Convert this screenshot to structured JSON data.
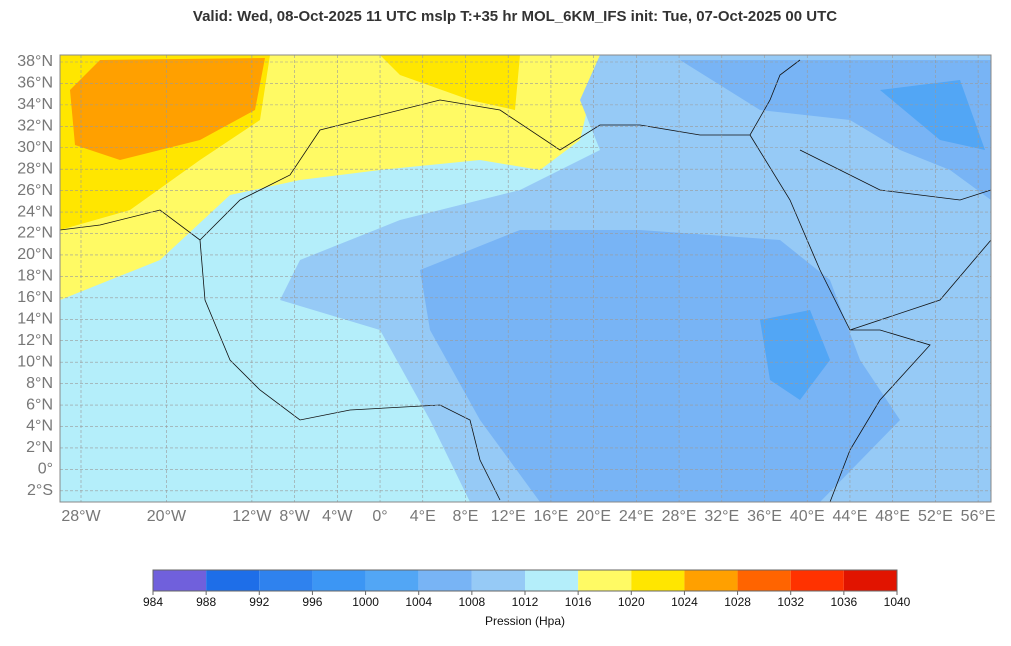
{
  "title": "Valid: Wed, 08-Oct-2025   11 UTC   mslp   T:+35 hr   MOL_6KM_IFS       init: Tue, 07-Oct-2025   00 UTC",
  "map": {
    "lat_ticks": [
      {
        "value": 38,
        "label": "38°N"
      },
      {
        "value": 36,
        "label": "36°N"
      },
      {
        "value": 34,
        "label": "34°N"
      },
      {
        "value": 32,
        "label": "32°N"
      },
      {
        "value": 30,
        "label": "30°N"
      },
      {
        "value": 28,
        "label": "28°N"
      },
      {
        "value": 26,
        "label": "26°N"
      },
      {
        "value": 24,
        "label": "24°N"
      },
      {
        "value": 22,
        "label": "22°N"
      },
      {
        "value": 20,
        "label": "20°N"
      },
      {
        "value": 18,
        "label": "18°N"
      },
      {
        "value": 16,
        "label": "16°N"
      },
      {
        "value": 14,
        "label": "14°N"
      },
      {
        "value": 12,
        "label": "12°N"
      },
      {
        "value": 10,
        "label": "10°N"
      },
      {
        "value": 8,
        "label": "8°N"
      },
      {
        "value": 6,
        "label": "6°N"
      },
      {
        "value": 4,
        "label": "4°N"
      },
      {
        "value": 2,
        "label": "2°N"
      },
      {
        "value": 0,
        "label": "0°"
      },
      {
        "value": -2,
        "label": "2°S"
      }
    ],
    "lon_ticks": [
      {
        "value": -28,
        "label": "28°W"
      },
      {
        "value": -20,
        "label": "20°W"
      },
      {
        "value": -12,
        "label": "12°W"
      },
      {
        "value": -8,
        "label": "8°W"
      },
      {
        "value": -4,
        "label": "4°W"
      },
      {
        "value": 0,
        "label": "0°"
      },
      {
        "value": 4,
        "label": "4°E"
      },
      {
        "value": 8,
        "label": "8°E"
      },
      {
        "value": 12,
        "label": "12°E"
      },
      {
        "value": 16,
        "label": "16°E"
      },
      {
        "value": 20,
        "label": "20°E"
      },
      {
        "value": 24,
        "label": "24°E"
      },
      {
        "value": 28,
        "label": "28°E"
      },
      {
        "value": 32,
        "label": "32°E"
      },
      {
        "value": 36,
        "label": "36°E"
      },
      {
        "value": 40,
        "label": "40°E"
      },
      {
        "value": 44,
        "label": "44°E"
      },
      {
        "value": 48,
        "label": "48°E"
      },
      {
        "value": 52,
        "label": "52°E"
      },
      {
        "value": 56,
        "label": "56°E"
      }
    ]
  },
  "colorbar": {
    "ticks": [
      984,
      988,
      992,
      996,
      1000,
      1004,
      1008,
      1012,
      1016,
      1020,
      1024,
      1028,
      1032,
      1036,
      1040
    ],
    "colors": [
      "#7060dc",
      "#1e6ee8",
      "#2f82ee",
      "#3c96f4",
      "#52a6f5",
      "#78b4f5",
      "#96caf6",
      "#b4eefa",
      "#fffa64",
      "#ffe600",
      "#ffa000",
      "#ff6400",
      "#ff3200",
      "#e11400"
    ],
    "label": "Pression (Hpa)"
  }
}
